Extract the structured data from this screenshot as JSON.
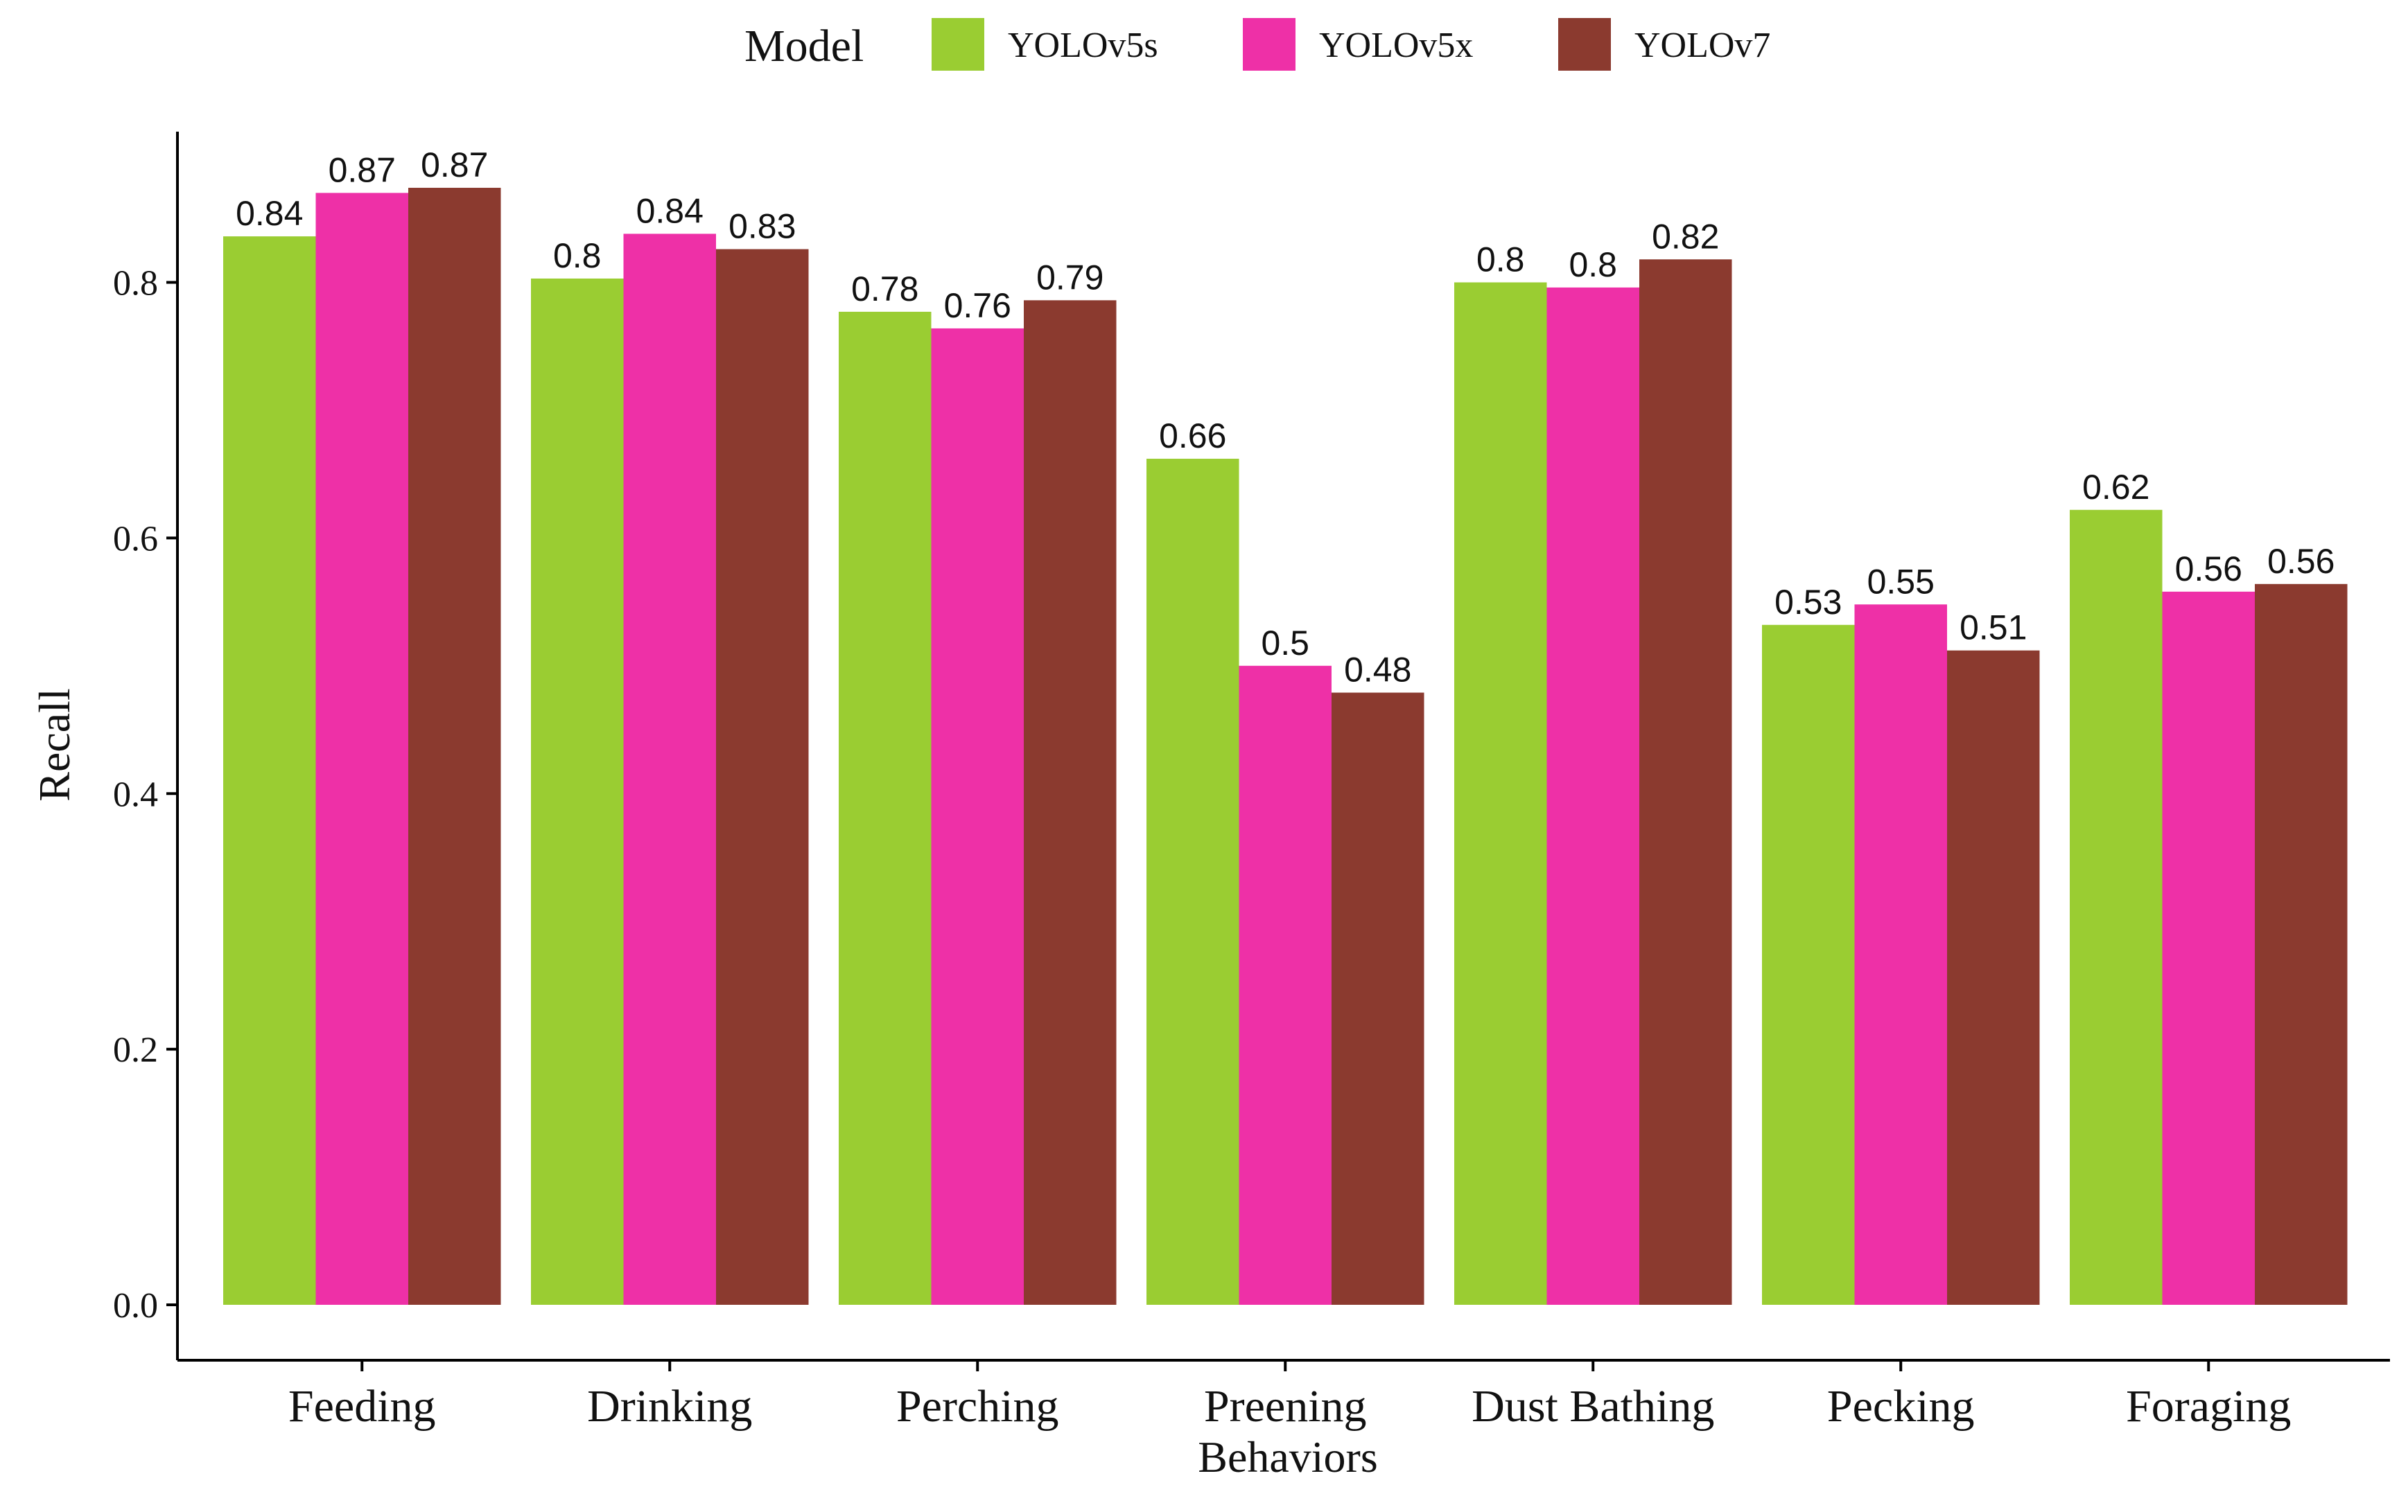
{
  "chart_data": {
    "type": "bar",
    "title": "",
    "xlabel": "Behaviors",
    "ylabel": "Recall",
    "legend_title": "Model",
    "legend_position": "top",
    "grid": false,
    "ylim": [
      0,
      0.91
    ],
    "yticks": [
      0.0,
      0.2,
      0.4,
      0.6,
      0.8
    ],
    "ytick_labels": [
      "0.0",
      "0.2",
      "0.4",
      "0.6",
      "0.8"
    ],
    "categories": [
      "Feeding",
      "Drinking",
      "Perching",
      "Preening",
      "Dust Bathing",
      "Pecking",
      "Foraging"
    ],
    "series": [
      {
        "name": "YOLOv5s",
        "color": "#9ACD32",
        "values": [
          0.836,
          0.803,
          0.777,
          0.662,
          0.8,
          0.532,
          0.622
        ],
        "labels": [
          "0.84",
          "0.8",
          "0.78",
          "0.66",
          "0.8",
          "0.53",
          "0.62"
        ]
      },
      {
        "name": "YOLOv5x",
        "color": "#EE30A7",
        "values": [
          0.87,
          0.838,
          0.764,
          0.5,
          0.796,
          0.548,
          0.558
        ],
        "labels": [
          "0.87",
          "0.84",
          "0.76",
          "0.5",
          "0.8",
          "0.55",
          "0.56"
        ]
      },
      {
        "name": "YOLOv7",
        "color": "#8B3A2F",
        "values": [
          0.874,
          0.826,
          0.786,
          0.479,
          0.818,
          0.512,
          0.564
        ],
        "labels": [
          "0.87",
          "0.83",
          "0.79",
          "0.48",
          "0.82",
          "0.51",
          "0.56"
        ]
      }
    ]
  }
}
